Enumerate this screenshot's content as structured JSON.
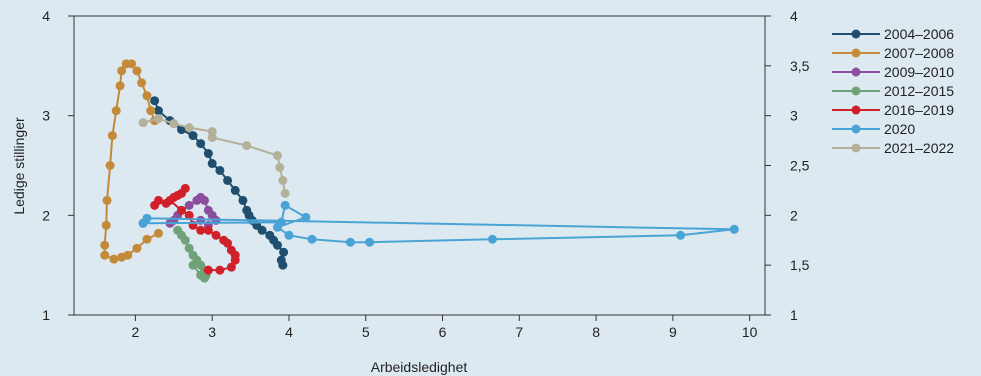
{
  "chart_data": {
    "type": "scatter",
    "xlabel": "Arbeidsledighet",
    "ylabel": "Ledige stillinger",
    "xlim": [
      1.2,
      10.2
    ],
    "ylim": [
      1,
      4
    ],
    "x_ticks": [
      2,
      3,
      4,
      5,
      6,
      7,
      8,
      9,
      10
    ],
    "x_tick_labels": [
      "2",
      "3",
      "4",
      "5",
      "6",
      "7",
      "8",
      "9",
      "10"
    ],
    "y_ticks_left": [
      1,
      2,
      3,
      4
    ],
    "y_tick_labels_left": [
      "1",
      "2",
      "3",
      "4"
    ],
    "y_ticks_right": [
      1,
      1.5,
      2,
      2.5,
      3,
      3.5,
      4
    ],
    "y_tick_labels_right": [
      "1",
      "1,5",
      "2",
      "2,5",
      "3",
      "3,5",
      "4"
    ],
    "grid": false,
    "legend_position": "right",
    "series": [
      {
        "name": "2004–2006",
        "color": "#1f4e6e",
        "points": [
          [
            3.92,
            1.5
          ],
          [
            3.9,
            1.55
          ],
          [
            3.93,
            1.63
          ],
          [
            3.85,
            1.7
          ],
          [
            3.8,
            1.75
          ],
          [
            3.75,
            1.8
          ],
          [
            3.65,
            1.85
          ],
          [
            3.58,
            1.9
          ],
          [
            3.52,
            1.95
          ],
          [
            3.48,
            2
          ],
          [
            3.45,
            2.05
          ],
          [
            3.4,
            2.15
          ],
          [
            3.3,
            2.25
          ],
          [
            3.2,
            2.35
          ],
          [
            3.1,
            2.45
          ],
          [
            3.0,
            2.52
          ],
          [
            2.95,
            2.62
          ],
          [
            2.85,
            2.72
          ],
          [
            2.75,
            2.8
          ],
          [
            2.6,
            2.86
          ],
          [
            2.45,
            2.95
          ],
          [
            2.3,
            3.05
          ],
          [
            2.25,
            3.15
          ]
        ]
      },
      {
        "name": "2007–2008",
        "color": "#c48a3a",
        "points": [
          [
            2.25,
            2.95
          ],
          [
            2.2,
            3.05
          ],
          [
            2.15,
            3.2
          ],
          [
            2.08,
            3.33
          ],
          [
            2.02,
            3.45
          ],
          [
            1.95,
            3.52
          ],
          [
            1.88,
            3.52
          ],
          [
            1.82,
            3.45
          ],
          [
            1.8,
            3.3
          ],
          [
            1.75,
            3.05
          ],
          [
            1.7,
            2.8
          ],
          [
            1.67,
            2.5
          ],
          [
            1.63,
            2.15
          ],
          [
            1.62,
            1.9
          ],
          [
            1.6,
            1.7
          ],
          [
            1.6,
            1.6
          ],
          [
            1.72,
            1.56
          ],
          [
            1.82,
            1.58
          ],
          [
            1.9,
            1.6
          ],
          [
            2.02,
            1.67
          ],
          [
            2.15,
            1.76
          ],
          [
            2.3,
            1.82
          ]
        ]
      },
      {
        "name": "2009–2010",
        "color": "#8a4f9c",
        "points": [
          [
            2.45,
            1.92
          ],
          [
            2.5,
            1.95
          ],
          [
            2.55,
            2.0
          ],
          [
            2.6,
            2.05
          ],
          [
            2.7,
            2.1
          ],
          [
            2.8,
            2.15
          ],
          [
            2.85,
            2.18
          ],
          [
            2.9,
            2.15
          ],
          [
            2.95,
            2.05
          ],
          [
            3.0,
            2.0
          ],
          [
            3.05,
            1.95
          ],
          [
            2.95,
            1.9
          ],
          [
            2.85,
            1.95
          ]
        ]
      },
      {
        "name": "2012–2015",
        "color": "#6fa279",
        "points": [
          [
            2.55,
            1.85
          ],
          [
            2.6,
            1.8
          ],
          [
            2.65,
            1.75
          ],
          [
            2.7,
            1.67
          ],
          [
            2.75,
            1.6
          ],
          [
            2.8,
            1.55
          ],
          [
            2.85,
            1.5
          ],
          [
            2.9,
            1.45
          ],
          [
            2.92,
            1.4
          ],
          [
            2.9,
            1.37
          ],
          [
            2.85,
            1.4
          ],
          [
            2.75,
            1.5
          ]
        ]
      },
      {
        "name": "2016–2019",
        "color": "#d0202a",
        "points": [
          [
            2.25,
            2.1
          ],
          [
            2.3,
            2.15
          ],
          [
            2.4,
            2.12
          ],
          [
            2.5,
            2.18
          ],
          [
            2.6,
            2.22
          ],
          [
            2.65,
            2.27
          ],
          [
            2.55,
            2.2
          ],
          [
            2.45,
            2.15
          ],
          [
            2.6,
            2.05
          ],
          [
            2.7,
            2.0
          ],
          [
            2.75,
            1.9
          ],
          [
            2.85,
            1.85
          ],
          [
            2.95,
            1.85
          ],
          [
            3.05,
            1.8
          ],
          [
            3.15,
            1.75
          ],
          [
            3.2,
            1.72
          ],
          [
            3.25,
            1.65
          ],
          [
            3.3,
            1.6
          ],
          [
            3.3,
            1.55
          ],
          [
            3.25,
            1.48
          ],
          [
            3.1,
            1.45
          ],
          [
            2.95,
            1.45
          ]
        ]
      },
      {
        "name": "2020",
        "color": "#4aa3d5",
        "points": [
          [
            2.1,
            1.92
          ],
          [
            2.15,
            1.97
          ],
          [
            9.8,
            1.86
          ],
          [
            9.1,
            1.8
          ],
          [
            6.65,
            1.76
          ],
          [
            5.05,
            1.73
          ],
          [
            4.8,
            1.73
          ],
          [
            4.3,
            1.76
          ],
          [
            4.0,
            1.8
          ],
          [
            3.85,
            1.88
          ],
          [
            4.22,
            1.98
          ],
          [
            3.95,
            2.1
          ],
          [
            3.9,
            1.93
          ],
          [
            2.1,
            1.92
          ]
        ]
      },
      {
        "name": "2021–2022",
        "color": "#b4b09a",
        "points": [
          [
            2.1,
            2.93
          ],
          [
            2.3,
            2.97
          ],
          [
            2.5,
            2.92
          ],
          [
            2.7,
            2.88
          ],
          [
            3.0,
            2.84
          ],
          [
            3.0,
            2.78
          ],
          [
            3.45,
            2.7
          ],
          [
            3.85,
            2.6
          ],
          [
            3.88,
            2.48
          ],
          [
            3.92,
            2.35
          ],
          [
            3.95,
            2.22
          ]
        ]
      }
    ]
  }
}
